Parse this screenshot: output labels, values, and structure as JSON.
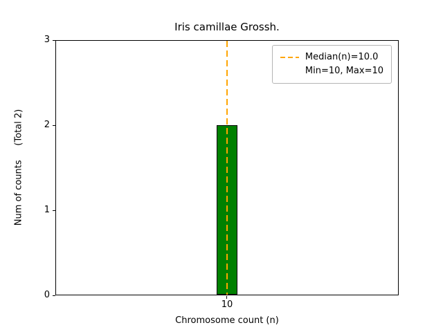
{
  "chart_data": {
    "type": "bar",
    "title": "Iris camillae Grossh.",
    "xlabel": "Chromosome count (n)",
    "ylabel": "Num of counts     (Total 2)",
    "categories": [
      "10"
    ],
    "values": [
      2
    ],
    "total_counts": 2,
    "ylim": [
      0,
      3
    ],
    "yticks": [
      "0",
      "1",
      "2",
      "3"
    ],
    "xtick_labels": [
      "10"
    ],
    "grid": "off",
    "bar_color": "#008000",
    "bar_edge_color": "#000000",
    "median_line": {
      "value": 10,
      "label": "Median(n)=10.0",
      "color": "#ffa500",
      "style": "dashed"
    },
    "legend": {
      "position": "upper right",
      "entries": [
        {
          "symbol": "dashed-orange-line",
          "label": "Median(n)=10.0"
        },
        {
          "symbol": "none",
          "label": "Min=10, Max=10"
        }
      ]
    }
  }
}
